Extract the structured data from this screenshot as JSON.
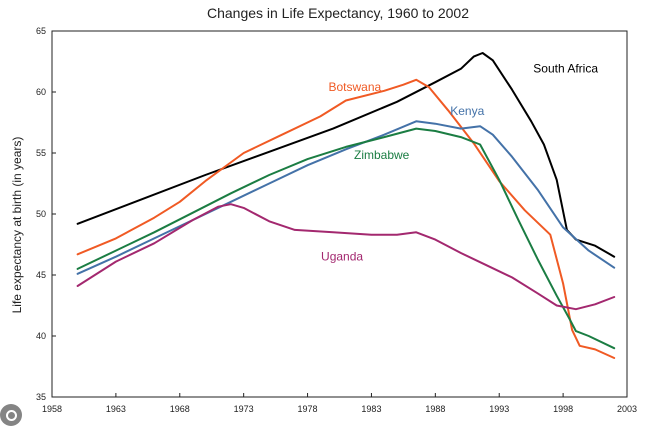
{
  "chart_data": {
    "type": "line",
    "title": "Changes in Life Expectancy, 1960 to 2002",
    "xlabel": "",
    "ylabel": "Life expectancy at birth (in years)",
    "xlim": [
      1958,
      2003
    ],
    "ylim": [
      35,
      65
    ],
    "xticks": [
      1958,
      1963,
      1968,
      1973,
      1978,
      1983,
      1988,
      1993,
      1998,
      2003
    ],
    "yticks": [
      35,
      40,
      45,
      50,
      55,
      60,
      65
    ],
    "grid": false,
    "legend": "inline labels",
    "series": [
      {
        "name": "South Africa",
        "color": "#000000",
        "points": [
          [
            1960,
            49.2
          ],
          [
            1965,
            51.2
          ],
          [
            1970,
            53.2
          ],
          [
            1975,
            55.1
          ],
          [
            1980,
            57.0
          ],
          [
            1985,
            59.2
          ],
          [
            1988,
            60.8
          ],
          [
            1990,
            61.9
          ],
          [
            1991,
            62.9
          ],
          [
            1991.7,
            63.2
          ],
          [
            1992.5,
            62.6
          ],
          [
            1994,
            60.2
          ],
          [
            1995.5,
            57.6
          ],
          [
            1996.5,
            55.7
          ],
          [
            1997.5,
            52.8
          ],
          [
            1998.3,
            48.7
          ],
          [
            1999,
            47.9
          ],
          [
            2000.5,
            47.4
          ],
          [
            2002,
            46.5
          ]
        ],
        "label_at": [
          1998.2,
          61.6
        ]
      },
      {
        "name": "Botswana",
        "color": "#f05a24",
        "points": [
          [
            1960,
            46.7
          ],
          [
            1963,
            48.0
          ],
          [
            1966,
            49.7
          ],
          [
            1968,
            51.0
          ],
          [
            1970,
            52.7
          ],
          [
            1973,
            55.0
          ],
          [
            1976,
            56.5
          ],
          [
            1979,
            58.0
          ],
          [
            1981,
            59.3
          ],
          [
            1984,
            60.1
          ],
          [
            1985.5,
            60.6
          ],
          [
            1986.5,
            61.0
          ],
          [
            1987.5,
            60.4
          ],
          [
            1989,
            58.5
          ],
          [
            1991,
            55.8
          ],
          [
            1993,
            52.7
          ],
          [
            1995,
            50.3
          ],
          [
            1997,
            48.3
          ],
          [
            1998,
            44.3
          ],
          [
            1998.7,
            40.5
          ],
          [
            1999.3,
            39.2
          ],
          [
            2000.5,
            38.9
          ],
          [
            2002,
            38.2
          ]
        ],
        "label_at": [
          1981.7,
          60.1
        ]
      },
      {
        "name": "Kenya",
        "color": "#4472a8",
        "points": [
          [
            1960,
            45.1
          ],
          [
            1963,
            46.5
          ],
          [
            1966,
            48.0
          ],
          [
            1969,
            49.5
          ],
          [
            1972,
            51.0
          ],
          [
            1975,
            52.5
          ],
          [
            1978,
            54.0
          ],
          [
            1981,
            55.3
          ],
          [
            1984,
            56.5
          ],
          [
            1986.5,
            57.6
          ],
          [
            1988,
            57.4
          ],
          [
            1990,
            57.0
          ],
          [
            1991.5,
            57.2
          ],
          [
            1992.5,
            56.5
          ],
          [
            1994,
            54.7
          ],
          [
            1996,
            52.0
          ],
          [
            1998,
            48.9
          ],
          [
            2000,
            47.0
          ],
          [
            2002,
            45.6
          ]
        ],
        "label_at": [
          1990.5,
          58.1
        ]
      },
      {
        "name": "Zimbabwe",
        "color": "#1b7d43",
        "points": [
          [
            1960,
            45.5
          ],
          [
            1963,
            47.0
          ],
          [
            1966,
            48.5
          ],
          [
            1969,
            50.1
          ],
          [
            1972,
            51.7
          ],
          [
            1975,
            53.2
          ],
          [
            1978,
            54.5
          ],
          [
            1981,
            55.5
          ],
          [
            1984,
            56.3
          ],
          [
            1986.5,
            57.0
          ],
          [
            1988,
            56.8
          ],
          [
            1990,
            56.3
          ],
          [
            1991.5,
            55.7
          ],
          [
            1993,
            52.8
          ],
          [
            1994.5,
            49.5
          ],
          [
            1996,
            46.3
          ],
          [
            1997.5,
            43.3
          ],
          [
            1998.5,
            41.4
          ],
          [
            1999,
            40.4
          ],
          [
            2000,
            40.0
          ],
          [
            2002,
            39.0
          ]
        ],
        "label_at": [
          1983.8,
          54.5
        ]
      },
      {
        "name": "Uganda",
        "color": "#a3286f",
        "points": [
          [
            1960,
            44.1
          ],
          [
            1963,
            46.1
          ],
          [
            1966,
            47.6
          ],
          [
            1969,
            49.5
          ],
          [
            1971,
            50.6
          ],
          [
            1972,
            50.8
          ],
          [
            1973,
            50.5
          ],
          [
            1975,
            49.4
          ],
          [
            1977,
            48.7
          ],
          [
            1980,
            48.5
          ],
          [
            1983,
            48.3
          ],
          [
            1985,
            48.3
          ],
          [
            1986.5,
            48.5
          ],
          [
            1988,
            47.9
          ],
          [
            1990,
            46.8
          ],
          [
            1992,
            45.8
          ],
          [
            1994,
            44.8
          ],
          [
            1996,
            43.5
          ],
          [
            1997.5,
            42.5
          ],
          [
            1999,
            42.2
          ],
          [
            2000.5,
            42.6
          ],
          [
            2002,
            43.2
          ]
        ],
        "label_at": [
          1980.7,
          46.2
        ]
      }
    ]
  }
}
